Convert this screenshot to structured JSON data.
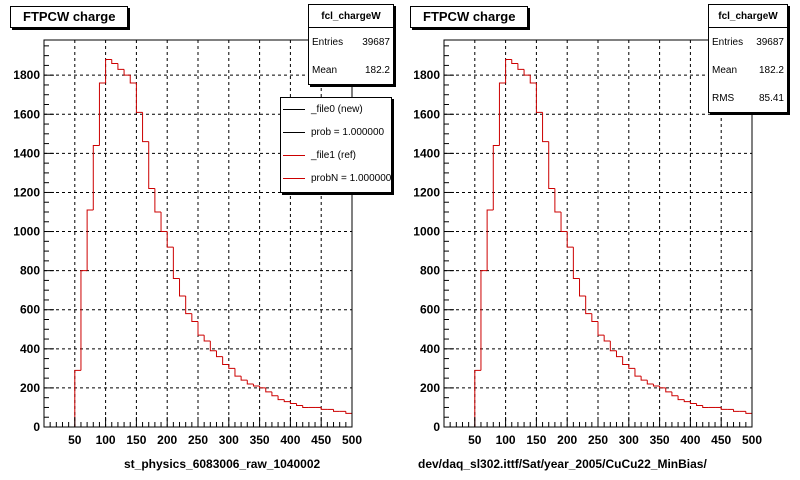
{
  "chart_data": [
    {
      "type": "histogram",
      "title": "FTPCW charge",
      "xlabel": "st_physics_6083006_raw_1040002",
      "ylabel": "",
      "xlim": [
        0,
        500
      ],
      "ylim": [
        0,
        1980
      ],
      "xticks": [
        50,
        100,
        150,
        200,
        250,
        300,
        350,
        400,
        450,
        500
      ],
      "yticks": [
        0,
        200,
        400,
        600,
        800,
        1000,
        1200,
        1400,
        1600,
        1800
      ],
      "grid": true,
      "line_color": "#cc0000",
      "bin_width": 10,
      "bins_x0": [
        0,
        10,
        20,
        30,
        40,
        50,
        60,
        70,
        80,
        90,
        100,
        110,
        120,
        130,
        140,
        150,
        160,
        170,
        180,
        190,
        200,
        210,
        220,
        230,
        240,
        250,
        260,
        270,
        280,
        290,
        300,
        310,
        320,
        330,
        340,
        350,
        360,
        370,
        380,
        390,
        400,
        410,
        420,
        430,
        440,
        450,
        460,
        470,
        480,
        490
      ],
      "values": [
        0,
        0,
        0,
        0,
        0,
        290,
        800,
        1110,
        1440,
        1760,
        1880,
        1860,
        1830,
        1800,
        1760,
        1610,
        1460,
        1220,
        1100,
        1000,
        920,
        760,
        670,
        580,
        540,
        470,
        440,
        390,
        360,
        320,
        300,
        260,
        240,
        220,
        210,
        200,
        180,
        160,
        140,
        130,
        120,
        110,
        100,
        100,
        100,
        90,
        90,
        80,
        80,
        70
      ],
      "stats": {
        "name": "fcl_chargeW",
        "rows": [
          {
            "label": "Entries",
            "value": "39687"
          },
          {
            "label": "Mean",
            "value": "182.2"
          }
        ]
      },
      "legend": [
        {
          "label": "_file0 (new)",
          "color": "#000000"
        },
        {
          "label": "prob = 1.000000",
          "color": "#000000"
        },
        {
          "label": "_file1 (ref)",
          "color": "#cc0000"
        },
        {
          "label": "probN = 1.000000",
          "color": "#cc0000"
        }
      ]
    },
    {
      "type": "histogram",
      "title": "FTPCW charge",
      "xlabel": "dev/daq_sl302.ittf/Sat/year_2005/CuCu22_MinBias/",
      "ylabel": "",
      "xlim": [
        0,
        500
      ],
      "ylim": [
        0,
        1980
      ],
      "xticks": [
        50,
        100,
        150,
        200,
        250,
        300,
        350,
        400,
        450,
        500
      ],
      "yticks": [
        0,
        200,
        400,
        600,
        800,
        1000,
        1200,
        1400,
        1600,
        1800
      ],
      "grid": true,
      "line_color": "#cc0000",
      "bin_width": 10,
      "bins_x0": [
        0,
        10,
        20,
        30,
        40,
        50,
        60,
        70,
        80,
        90,
        100,
        110,
        120,
        130,
        140,
        150,
        160,
        170,
        180,
        190,
        200,
        210,
        220,
        230,
        240,
        250,
        260,
        270,
        280,
        290,
        300,
        310,
        320,
        330,
        340,
        350,
        360,
        370,
        380,
        390,
        400,
        410,
        420,
        430,
        440,
        450,
        460,
        470,
        480,
        490
      ],
      "values": [
        0,
        0,
        0,
        0,
        0,
        290,
        800,
        1110,
        1440,
        1760,
        1880,
        1860,
        1830,
        1800,
        1760,
        1610,
        1460,
        1220,
        1100,
        1000,
        920,
        760,
        670,
        580,
        540,
        470,
        440,
        390,
        360,
        320,
        300,
        260,
        240,
        220,
        210,
        200,
        180,
        160,
        140,
        130,
        120,
        110,
        100,
        100,
        100,
        90,
        90,
        80,
        80,
        70
      ],
      "stats": {
        "name": "fcl_chargeW",
        "rows": [
          {
            "label": "Entries",
            "value": "39687"
          },
          {
            "label": "Mean",
            "value": "182.2"
          },
          {
            "label": "RMS",
            "value": "85.41"
          }
        ]
      }
    }
  ]
}
